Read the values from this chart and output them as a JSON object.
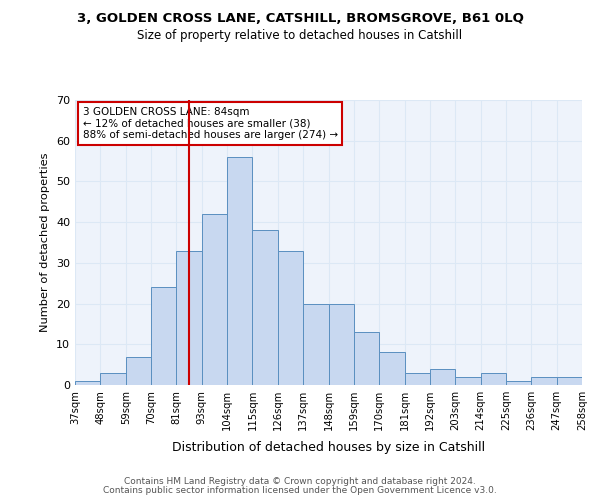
{
  "title1": "3, GOLDEN CROSS LANE, CATSHILL, BROMSGROVE, B61 0LQ",
  "title2": "Size of property relative to detached houses in Catshill",
  "xlabel": "Distribution of detached houses by size in Catshill",
  "ylabel": "Number of detached properties",
  "bar_labels": [
    "37sqm",
    "48sqm",
    "59sqm",
    "70sqm",
    "81sqm",
    "93sqm",
    "104sqm",
    "115sqm",
    "126sqm",
    "137sqm",
    "148sqm",
    "159sqm",
    "170sqm",
    "181sqm",
    "192sqm",
    "203sqm",
    "214sqm",
    "225sqm",
    "236sqm",
    "247sqm",
    "258sqm"
  ],
  "bar_heights": [
    1,
    3,
    7,
    24,
    33,
    42,
    56,
    38,
    33,
    20,
    20,
    13,
    8,
    3,
    4,
    2,
    3,
    1,
    2,
    2
  ],
  "bar_color": "#c8d8f0",
  "bar_edge_color": "#5a8fc0",
  "vline_x": 4.5,
  "vline_color": "#cc0000",
  "annotation_line1": "3 GOLDEN CROSS LANE: 84sqm",
  "annotation_line2": "← 12% of detached houses are smaller (38)",
  "annotation_line3": "88% of semi-detached houses are larger (274) →",
  "annotation_box_edge_color": "#cc0000",
  "grid_color": "#dce8f5",
  "background_color": "#eef3fb",
  "ylim": [
    0,
    70
  ],
  "yticks": [
    0,
    10,
    20,
    30,
    40,
    50,
    60,
    70
  ],
  "footer1": "Contains HM Land Registry data © Crown copyright and database right 2024.",
  "footer2": "Contains public sector information licensed under the Open Government Licence v3.0."
}
